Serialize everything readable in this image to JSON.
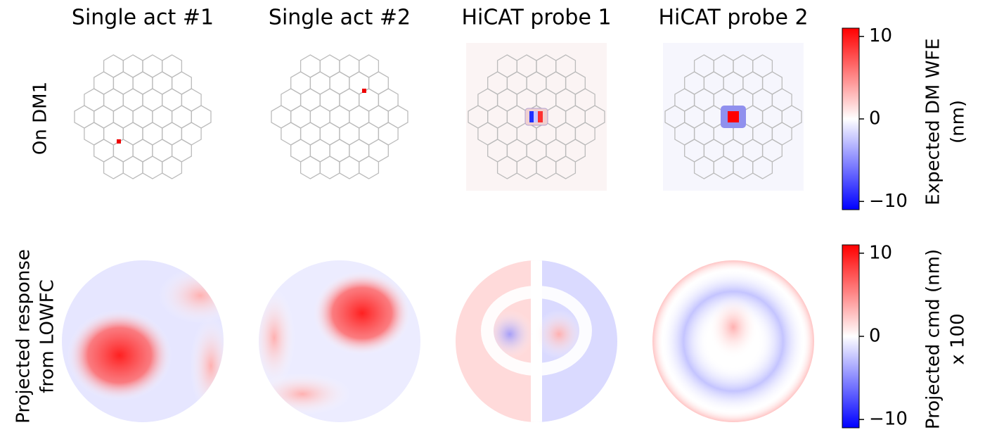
{
  "columns": [
    "Single act #1",
    "Single act #2",
    "HiCAT probe 1",
    "HiCAT probe 2"
  ],
  "rows": [
    [
      "On DM1"
    ],
    [
      "Projected response",
      "from LOWFC"
    ]
  ],
  "colorbars": [
    {
      "label": [
        "Expected DM WFE",
        "(nm)"
      ],
      "lim": [
        -11,
        11
      ],
      "ticks": [
        {
          "value": -10,
          "label": "−10"
        },
        0,
        10
      ]
    },
    {
      "label": [
        "Projected cmd (nm)",
        "x 100"
      ],
      "lim": [
        -11,
        11
      ],
      "ticks": [
        {
          "value": -10,
          "label": "−10"
        },
        0,
        10
      ]
    }
  ]
}
